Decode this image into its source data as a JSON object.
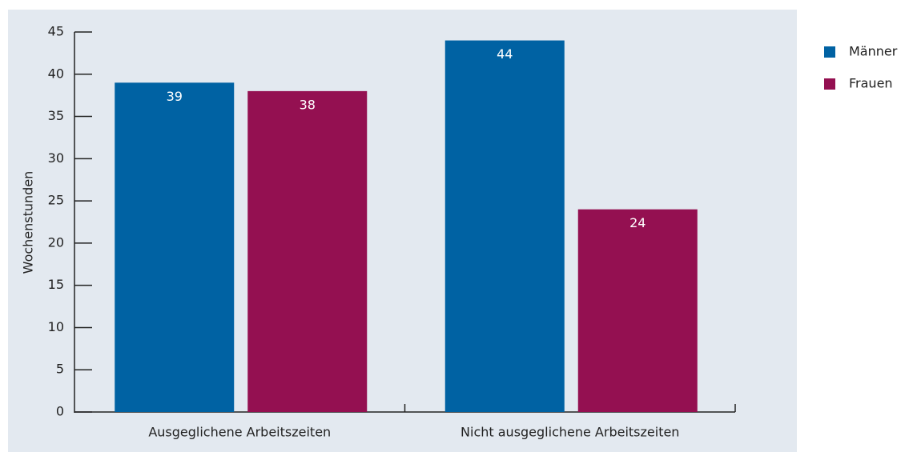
{
  "chart_data": {
    "type": "bar",
    "y_label": "Wochenstunden",
    "categories": [
      "Ausgeglichene Arbeitszeiten",
      "Nicht ausgeglichene Arbeitszeiten"
    ],
    "series": [
      {
        "name": "Männer",
        "color": "#0062a3",
        "values": [
          39,
          44
        ]
      },
      {
        "name": "Frauen",
        "color": "#941051",
        "values": [
          38,
          24
        ]
      }
    ],
    "ylim": [
      0,
      45
    ],
    "yticks": [
      0,
      5,
      10,
      15,
      20,
      25,
      30,
      35,
      40,
      45
    ],
    "legend": "right"
  }
}
